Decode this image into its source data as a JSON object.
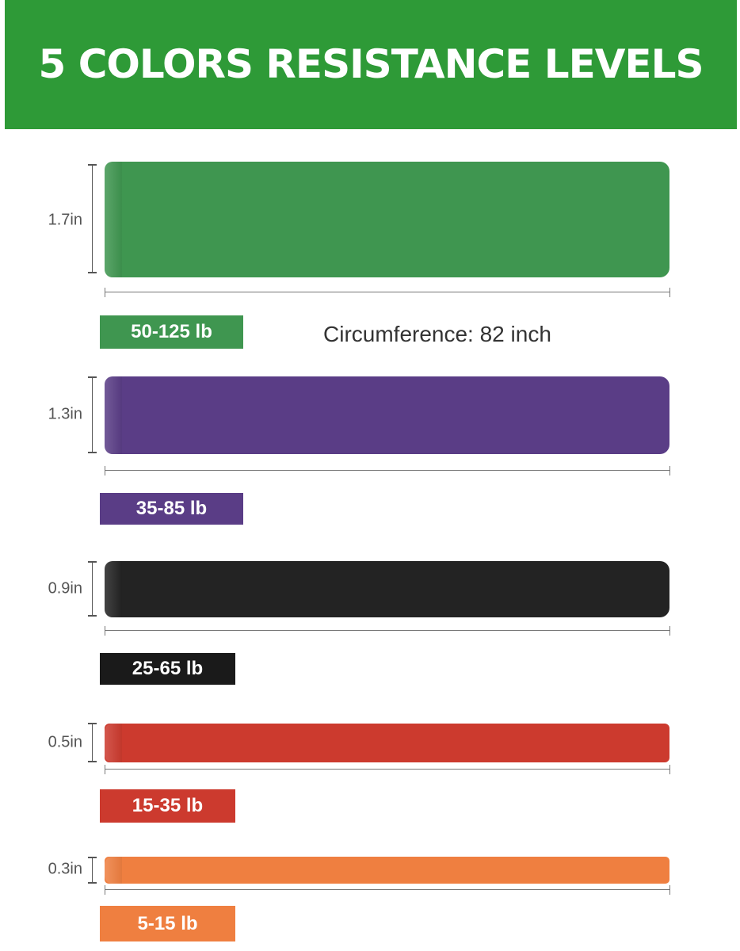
{
  "header": {
    "title": "5 COLORS RESISTANCE LEVELS",
    "background": "#2e9a37"
  },
  "circumference": "Circumference: 82 inch",
  "bands": [
    {
      "color_name": "green",
      "color": "#3f9650",
      "width": "1.7in",
      "resistance": "50-125 lb"
    },
    {
      "color_name": "purple",
      "color": "#5a3d86",
      "width": "1.3in",
      "resistance": "35-85 lb"
    },
    {
      "color_name": "black",
      "color": "#232323",
      "width": "0.9in",
      "resistance": "25-65 lb"
    },
    {
      "color_name": "red",
      "color": "#cc3a2e",
      "width": "0.5in",
      "resistance": "15-35 lb"
    },
    {
      "color_name": "orange",
      "color": "#ef7f40",
      "width": "0.3in",
      "resistance": "5-15 lb"
    }
  ]
}
